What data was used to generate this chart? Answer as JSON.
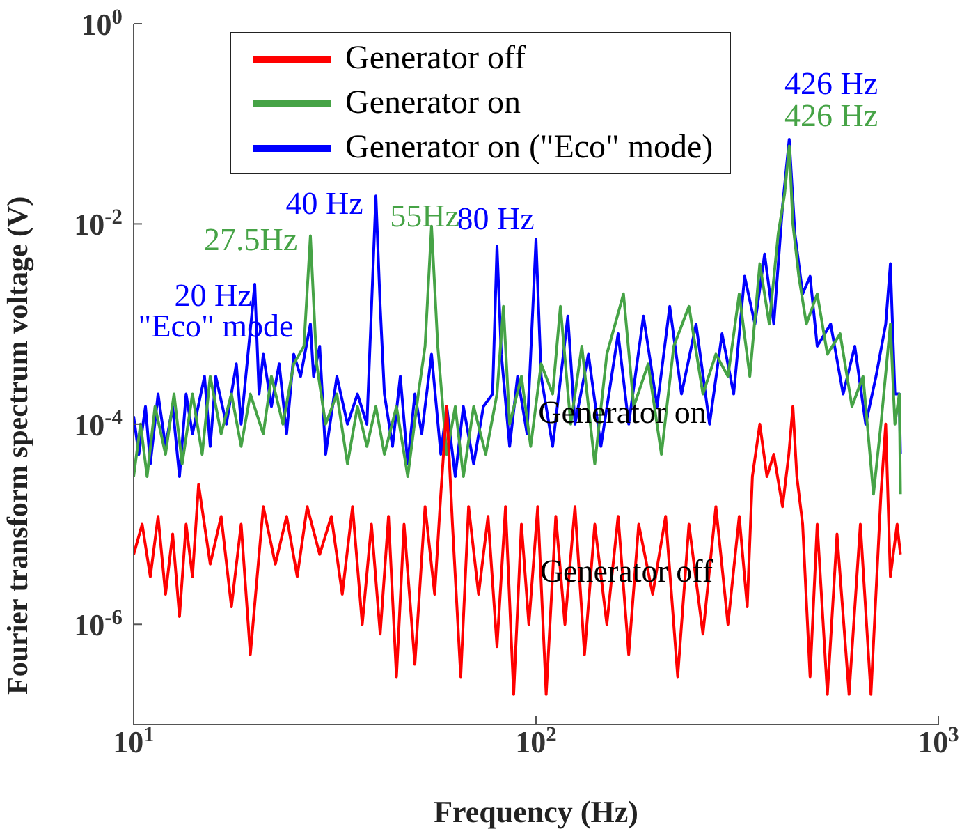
{
  "chart_data": {
    "type": "line",
    "xlabel": "Frequency (Hz)",
    "ylabel": "Fourier transform spectrum voltage (V)",
    "log": "xy",
    "xlim": [
      10,
      1000
    ],
    "ylim": [
      1e-07,
      1
    ],
    "xticks": [
      {
        "value": 10,
        "label": "10$^{1}$"
      },
      {
        "value": 100,
        "label": "10$^{2}$"
      },
      {
        "value": 1000,
        "label": "10$^{3}$"
      }
    ],
    "yticks": [
      {
        "value": 1e-06,
        "label": "10$^{-6}$"
      },
      {
        "value": 0.0001,
        "label": "10$^{-4}$"
      },
      {
        "value": 0.01,
        "label": "10$^{-2}$"
      },
      {
        "value": 1,
        "label": "10$^{0}$"
      }
    ],
    "legend": "top",
    "grid": false,
    "marker": "none",
    "line_style": "solid",
    "series": [
      {
        "name": "Generator off",
        "color": "#ff0000",
        "x": [
          10,
          10.5,
          11,
          11.5,
          12,
          12.5,
          13,
          13.5,
          14,
          14.5,
          15.5,
          16.5,
          17.5,
          18.5,
          19.5,
          21,
          22.5,
          24,
          25.5,
          27,
          29,
          31,
          33,
          35,
          37,
          39,
          41,
          43,
          45,
          47,
          50,
          53,
          56,
          58,
          60,
          62,
          65,
          68,
          72,
          76,
          80,
          84,
          88,
          92,
          96,
          101,
          106,
          112,
          118,
          125,
          132,
          140,
          150,
          160,
          170,
          180,
          195,
          210,
          225,
          240,
          260,
          280,
          300,
          320,
          335,
          345,
          360,
          375,
          390,
          410,
          425,
          435,
          445,
          460,
          480,
          500,
          530,
          560,
          600,
          640,
          680,
          720,
          740,
          760,
          790,
          805
        ],
        "values": [
          5e-06,
          1e-05,
          3e-06,
          1.2e-05,
          2e-06,
          8e-06,
          1.2e-06,
          1e-05,
          3e-06,
          2.5e-05,
          4e-06,
          1.2e-05,
          1.5e-06,
          1e-05,
          5e-07,
          1.5e-05,
          4e-06,
          1.2e-05,
          3e-06,
          1.5e-05,
          5e-06,
          1.2e-05,
          2e-06,
          1.5e-05,
          1e-06,
          1e-05,
          8e-07,
          1.2e-05,
          3e-07,
          1e-05,
          4e-07,
          1.5e-05,
          2e-06,
          2e-05,
          0.00015,
          1e-05,
          3e-07,
          1.5e-05,
          2e-06,
          1.2e-05,
          6e-07,
          1.5e-05,
          2e-07,
          1e-05,
          1e-06,
          1.5e-05,
          2e-07,
          1.2e-05,
          1e-06,
          1.5e-05,
          5e-07,
          1e-05,
          1e-06,
          1.2e-05,
          5e-07,
          1e-05,
          2e-06,
          1.2e-05,
          3e-07,
          1e-05,
          8e-07,
          1.5e-05,
          1e-06,
          1.2e-05,
          1.5e-06,
          3e-05,
          0.0001,
          3e-05,
          5e-05,
          1.5e-05,
          5e-05,
          0.00015,
          3e-05,
          1e-05,
          3e-07,
          1e-05,
          2e-07,
          8e-06,
          2e-07,
          1e-05,
          2e-07,
          2e-05,
          0.0001,
          3e-06,
          1e-05,
          5e-06
        ]
      },
      {
        "name": "Generator on",
        "color": "#46a346",
        "x": [
          10,
          10.4,
          10.8,
          11.3,
          12,
          12.6,
          13.2,
          14,
          14.8,
          15.5,
          16.5,
          17.5,
          18.5,
          19.5,
          21,
          22,
          23.5,
          25,
          26.5,
          27.5,
          28.5,
          30,
          32,
          34,
          36,
          38,
          40,
          42,
          45,
          48,
          51,
          53,
          55,
          57,
          60,
          63,
          66,
          70,
          75,
          80,
          83,
          86,
          92,
          97,
          103,
          110,
          115,
          122,
          130,
          140,
          150,
          165,
          175,
          190,
          205,
          220,
          240,
          260,
          280,
          300,
          320,
          340,
          360,
          380,
          400,
          415,
          426,
          435,
          450,
          470,
          500,
          530,
          570,
          610,
          650,
          690,
          720,
          760,
          780,
          800,
          805
        ],
        "values": [
          3e-05,
          0.0001,
          3e-05,
          0.00015,
          5e-05,
          0.0002,
          4e-05,
          0.0002,
          5e-05,
          0.0003,
          8e-05,
          0.0002,
          6e-05,
          0.0002,
          8e-05,
          0.0003,
          0.0001,
          0.0004,
          0.0006,
          0.0076,
          0.0004,
          0.0001,
          0.0002,
          4e-05,
          0.00015,
          6e-05,
          0.00015,
          5e-05,
          0.00015,
          3e-05,
          0.0002,
          0.0006,
          0.0095,
          0.0006,
          5e-05,
          0.00015,
          3e-05,
          0.00015,
          5e-05,
          0.0002,
          0.0015,
          0.0001,
          0.0003,
          6e-05,
          0.0004,
          0.0002,
          0.0015,
          0.0001,
          0.0006,
          4e-05,
          0.0005,
          0.002,
          0.00015,
          0.0004,
          5e-05,
          0.0006,
          0.0015,
          0.0002,
          0.0005,
          0.0003,
          0.002,
          0.0003,
          0.004,
          0.001,
          0.008,
          0.02,
          0.06,
          0.01,
          0.003,
          0.001,
          0.002,
          0.0005,
          0.0008,
          0.00015,
          0.0003,
          2e-05,
          0.0001,
          0.001,
          0.0001,
          0.0002,
          2e-05
        ]
      },
      {
        "name": "Generator on (\"Eco\" mode)",
        "color": "#0000ff",
        "x": [
          10,
          10.3,
          10.7,
          11,
          11.5,
          12,
          12.5,
          13,
          13.5,
          14,
          15,
          15.5,
          16,
          17,
          18,
          18.5,
          19,
          20,
          20.5,
          21,
          22,
          23,
          24,
          25,
          26,
          27.5,
          28,
          29,
          30,
          32,
          34,
          36,
          38,
          40,
          41,
          42,
          44,
          46,
          48,
          50,
          52,
          55,
          58,
          60,
          63,
          66,
          70,
          74,
          78,
          80,
          82,
          86,
          90,
          95,
          100,
          103,
          110,
          120,
          125,
          135,
          145,
          160,
          170,
          185,
          200,
          215,
          230,
          250,
          270,
          290,
          310,
          330,
          350,
          370,
          390,
          410,
          426,
          440,
          460,
          480,
          500,
          540,
          580,
          620,
          660,
          700,
          740,
          760,
          780,
          800,
          805
        ],
        "values": [
          0.00012,
          5e-05,
          0.00015,
          4e-05,
          0.0002,
          6e-05,
          0.00015,
          3e-05,
          0.0002,
          8e-05,
          0.0003,
          6e-05,
          0.0003,
          0.0001,
          0.0004,
          0.0001,
          0.0003,
          0.0025,
          0.0002,
          0.0005,
          0.00015,
          0.0004,
          8e-05,
          0.0005,
          0.0003,
          0.001,
          0.0003,
          0.0006,
          5e-05,
          0.0003,
          0.0001,
          0.0002,
          0.0001,
          0.019,
          0.0015,
          0.0002,
          6e-05,
          0.0003,
          4e-05,
          0.0002,
          8e-05,
          0.0005,
          5e-05,
          0.00015,
          3e-05,
          0.00015,
          4e-05,
          0.00015,
          0.0002,
          0.006,
          0.0005,
          6e-05,
          0.0003,
          8e-05,
          0.007,
          0.0003,
          6e-05,
          0.0012,
          0.0001,
          0.0005,
          6e-05,
          0.0008,
          0.0001,
          0.0012,
          0.00015,
          0.0015,
          0.0002,
          0.001,
          0.0001,
          0.0008,
          0.0002,
          0.003,
          0.001,
          0.005,
          0.001,
          0.015,
          0.07,
          0.008,
          0.002,
          0.003,
          0.0006,
          0.001,
          0.0002,
          0.0006,
          0.0001,
          0.0003,
          0.001,
          0.004,
          0.0002,
          0.0002,
          5e-05
        ]
      }
    ],
    "annotations": [
      "20 Hz",
      "\"Eco\" mode",
      "27.5Hz",
      "40 Hz",
      "55Hz",
      "80 Hz",
      "426 Hz",
      "426 Hz",
      "Generator on",
      "Generator off"
    ]
  }
}
